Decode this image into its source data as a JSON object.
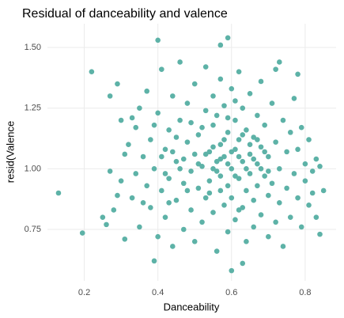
{
  "chart_data": {
    "type": "scatter",
    "title": "Residual of danceability and valence",
    "x_label": "Danceability",
    "y_label": "resid(Valence",
    "color": "#5db2a7",
    "grid": true,
    "xlim": [
      0.1,
      0.884
    ],
    "ylim": [
      0.538,
      1.598
    ],
    "xticks": [
      0.2,
      0.4,
      0.6,
      0.8
    ],
    "yticks": [
      {
        "value": 0.75,
        "label": "0.75"
      },
      {
        "value": 1.0,
        "label": "1.00"
      },
      {
        "value": 1.25,
        "label": "1.25"
      },
      {
        "value": 1.5,
        "label": "1.50"
      }
    ],
    "x": [
      0.13,
      0.195,
      0.22,
      0.29,
      0.4,
      0.57,
      0.59,
      0.73,
      0.78,
      0.6,
      0.63,
      0.39,
      0.83,
      0.84,
      0.85,
      0.31,
      0.27,
      0.25,
      0.26,
      0.28,
      0.3,
      0.3,
      0.32,
      0.33,
      0.34,
      0.35,
      0.35,
      0.36,
      0.37,
      0.37,
      0.38,
      0.38,
      0.39,
      0.4,
      0.4,
      0.41,
      0.41,
      0.42,
      0.42,
      0.43,
      0.43,
      0.44,
      0.44,
      0.45,
      0.45,
      0.46,
      0.46,
      0.47,
      0.47,
      0.48,
      0.48,
      0.49,
      0.49,
      0.5,
      0.5,
      0.5,
      0.51,
      0.51,
      0.52,
      0.52,
      0.53,
      0.53,
      0.53,
      0.54,
      0.54,
      0.55,
      0.55,
      0.55,
      0.56,
      0.56,
      0.56,
      0.57,
      0.57,
      0.57,
      0.58,
      0.58,
      0.58,
      0.59,
      0.59,
      0.59,
      0.6,
      0.6,
      0.6,
      0.61,
      0.61,
      0.61,
      0.62,
      0.62,
      0.62,
      0.63,
      0.63,
      0.63,
      0.64,
      0.64,
      0.64,
      0.65,
      0.65,
      0.65,
      0.66,
      0.66,
      0.66,
      0.67,
      0.67,
      0.67,
      0.68,
      0.68,
      0.68,
      0.69,
      0.69,
      0.7,
      0.7,
      0.7,
      0.71,
      0.71,
      0.72,
      0.72,
      0.72,
      0.73,
      0.73,
      0.74,
      0.74,
      0.75,
      0.75,
      0.76,
      0.76,
      0.77,
      0.77,
      0.78,
      0.78,
      0.79,
      0.79,
      0.8,
      0.8,
      0.81,
      0.81,
      0.82,
      0.82,
      0.83,
      0.84,
      0.27,
      0.29,
      0.31,
      0.33,
      0.34,
      0.36,
      0.39,
      0.41,
      0.43,
      0.45,
      0.47,
      0.49,
      0.51,
      0.52,
      0.54,
      0.55,
      0.56,
      0.57,
      0.58,
      0.59,
      0.6,
      0.61,
      0.62,
      0.63,
      0.64,
      0.65,
      0.66,
      0.67,
      0.68,
      0.69,
      0.7,
      0.53,
      0.55,
      0.57,
      0.59,
      0.61,
      0.62,
      0.48,
      0.46,
      0.44,
      0.42
    ],
    "y": [
      0.9,
      0.735,
      1.4,
      1.35,
      1.53,
      1.51,
      1.54,
      1.44,
      1.39,
      0.58,
      0.61,
      0.62,
      0.8,
      0.73,
      0.91,
      0.71,
      1.3,
      0.8,
      0.77,
      0.83,
      0.95,
      1.2,
      1.1,
      0.88,
      1.17,
      0.76,
      1.25,
      1.05,
      0.93,
      1.32,
      0.84,
      1.12,
      1.0,
      0.72,
      1.23,
      1.41,
      0.91,
      1.08,
      0.8,
      1.16,
      0.96,
      1.3,
      0.68,
      1.03,
      0.87,
      1.2,
      1.44,
      0.94,
      0.75,
      1.11,
      1.27,
      0.99,
      0.83,
      1.06,
      0.7,
      1.35,
      0.92,
      1.14,
      1.01,
      0.78,
      1.24,
      0.88,
      1.42,
      1.07,
      0.95,
      1.18,
      0.82,
      1.3,
      1.03,
      0.66,
      1.22,
      0.97,
      1.1,
      1.37,
      0.85,
      1.05,
      1.26,
      0.93,
      0.74,
      1.15,
      1.0,
      1.33,
      0.88,
      1.08,
      1.2,
      0.79,
      0.96,
      1.12,
      1.4,
      1.03,
      0.84,
      1.25,
      0.91,
      1.16,
      0.7,
      1.06,
      0.98,
      1.31,
      0.87,
      1.13,
      0.76,
      1.02,
      1.22,
      0.93,
      1.09,
      0.81,
      1.36,
      0.97,
      1.18,
      0.89,
      1.05,
      0.72,
      1.27,
      0.94,
      1.11,
      0.78,
      1.41,
      1.0,
      0.86,
      1.2,
      0.68,
      1.07,
      0.92,
      1.15,
      0.8,
      0.98,
      1.29,
      0.88,
      1.08,
      0.76,
      1.17,
      0.95,
      1.02,
      0.85,
      1.12,
      0.99,
      0.9,
      1.04,
      1.01,
      0.99,
      0.89,
      1.06,
      1.21,
      0.98,
      0.86,
      1.18,
      1.05,
      0.86,
      1.13,
      1.04,
      1.19,
      1.02,
      1.17,
      0.9,
      1.09,
      0.99,
      1.04,
      1.12,
      1.02,
      1.07,
      0.97,
      1.05,
      1.14,
      1.0,
      1.1,
      1.04,
      1.12,
      1.0,
      1.07,
      0.99,
      1.06,
      1.0,
      0.91,
      1.21,
      1.28,
      0.83,
      0.91,
      1.0,
      1.07,
      0.98
    ]
  }
}
